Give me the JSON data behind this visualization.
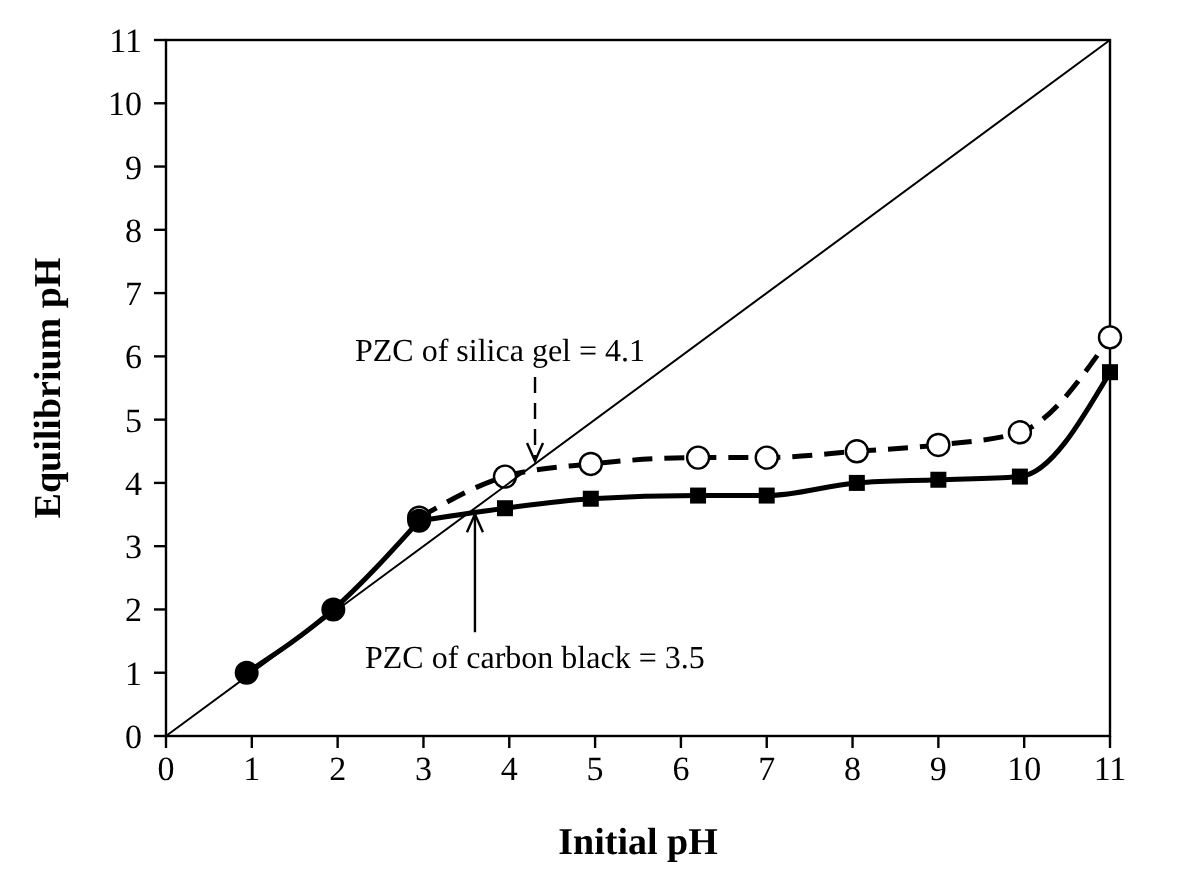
{
  "chart_data": {
    "type": "line",
    "xlabel": "Initial pH",
    "ylabel": "Equilibrium pH",
    "xlim": [
      0,
      11
    ],
    "ylim": [
      0,
      11
    ],
    "xticks": [
      0,
      1,
      2,
      3,
      4,
      5,
      6,
      7,
      8,
      9,
      10,
      11
    ],
    "yticks": [
      0,
      1,
      2,
      3,
      4,
      5,
      6,
      7,
      8,
      9,
      10,
      11
    ],
    "grid": false,
    "series": [
      {
        "type": "line",
        "color": "#000000",
        "marker": "none",
        "line_style": "solid",
        "x": [
          0,
          11
        ],
        "values": [
          0,
          11
        ]
      },
      {
        "type": "line",
        "color": "#000000",
        "marker": "circle",
        "line_style": "solid",
        "x": [
          0.94,
          1.95,
          2.95
        ],
        "values": [
          1,
          2,
          3.4
        ]
      },
      {
        "type": "line",
        "color": "#000000",
        "marker": "square",
        "line_style": "solid",
        "x": [
          2.95,
          3.95,
          4.95,
          6.2,
          7,
          8.05,
          9,
          9.95,
          11
        ],
        "values": [
          3.4,
          3.6,
          3.75,
          3.8,
          3.8,
          4,
          4.05,
          4.1,
          5.75
        ]
      },
      {
        "type": "line",
        "color": "#000000",
        "marker": "circle",
        "line_style": "dashed",
        "x": [
          2.95,
          3.95,
          4.95,
          6.2,
          7,
          8.05,
          9,
          9.95,
          11
        ],
        "values": [
          3.45,
          4.1,
          4.3,
          4.4,
          4.4,
          4.5,
          4.6,
          4.8,
          6.3
        ]
      }
    ],
    "annotations": [
      {
        "text": "PZC of silica gel = 4.1",
        "x": 4.3,
        "y": 4.25
      },
      {
        "text": "PZC of carbon black = 3.5",
        "x": 3.6,
        "y": 3.6
      }
    ]
  }
}
